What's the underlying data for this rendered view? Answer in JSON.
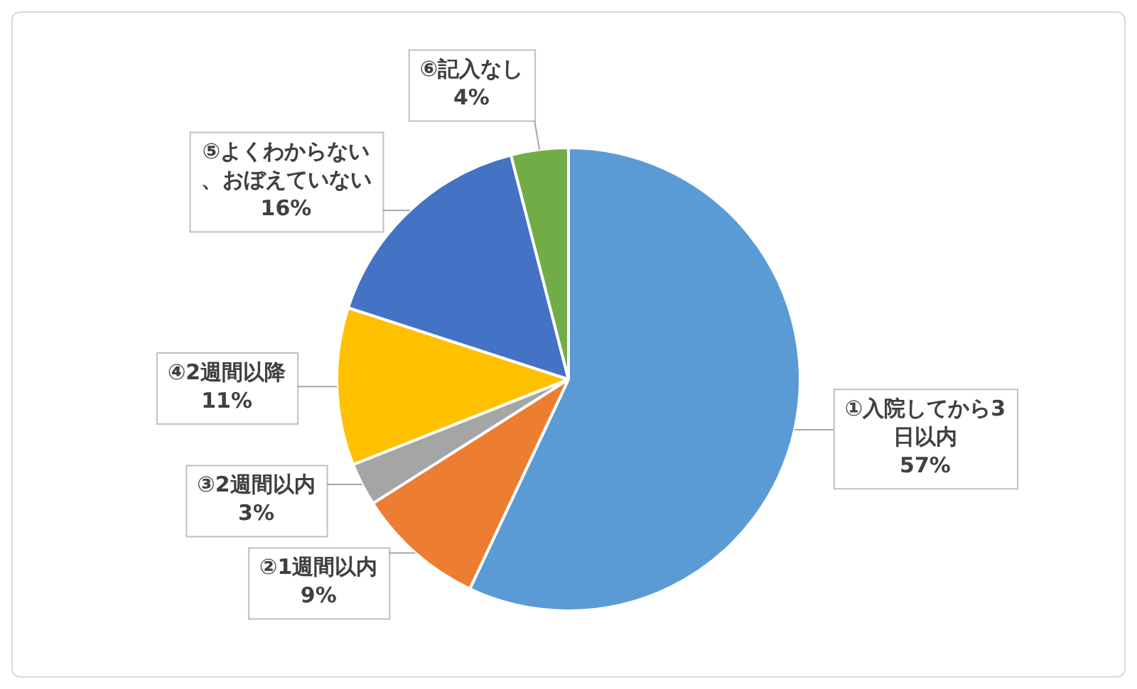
{
  "chart_data": {
    "type": "pie",
    "categories": [
      "①入院してから3日以内",
      "②1週間以内",
      "③2週間以内",
      "④2週間以降",
      "⑤よくわからない、おぼえていない",
      "⑥記入なし"
    ],
    "values": [
      57,
      9,
      3,
      11,
      16,
      4
    ],
    "colors": [
      "#5b9bd5",
      "#ed7d31",
      "#a5a5a5",
      "#ffc000",
      "#4472c4",
      "#70ad47"
    ],
    "value_labels": [
      "57%",
      "9%",
      "3%",
      "11%",
      "16%",
      "4%"
    ]
  }
}
